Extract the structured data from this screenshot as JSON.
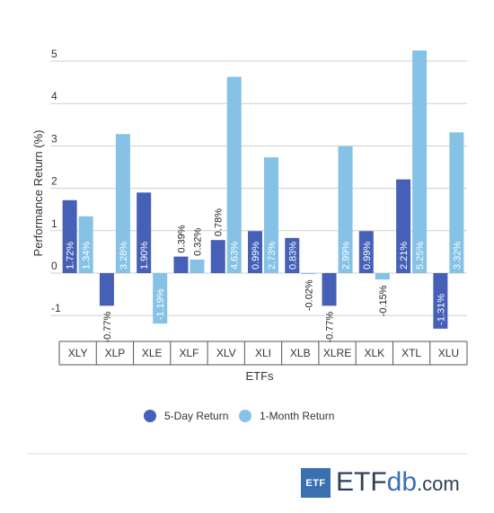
{
  "chart_data": {
    "type": "bar",
    "categories": [
      "XLY",
      "XLP",
      "XLE",
      "XLF",
      "XLV",
      "XLI",
      "XLB",
      "XLRE",
      "XLK",
      "XTL",
      "XLU"
    ],
    "series": [
      {
        "name": "5-Day Return",
        "color": "#4560b6",
        "values": [
          1.72,
          -0.77,
          1.9,
          0.39,
          0.78,
          0.99,
          0.83,
          -0.77,
          0.99,
          2.21,
          -1.31
        ],
        "labels": [
          "1.72%",
          "-0.77%",
          "1.90%",
          "0.39%",
          "0.78%",
          "0.99%",
          "0.83%",
          "-0.77%",
          "0.99%",
          "2.21%",
          "-1.31%"
        ]
      },
      {
        "name": "1-Month Return",
        "color": "#85c2e6",
        "values": [
          1.34,
          3.28,
          -1.19,
          0.32,
          4.63,
          2.73,
          -0.02,
          2.99,
          -0.15,
          5.25,
          3.32
        ],
        "labels": [
          "1.34%",
          "3.28%",
          "-1.19%",
          "0.32%",
          "4.63%",
          "2.73%",
          "-0.02%",
          "2.99%",
          "-0.15%",
          "5.25%",
          "3.32%"
        ]
      }
    ],
    "ylabel": "Performance Return (%)",
    "xlabel": "ETFs",
    "ylim": [
      -1.6,
      5.4
    ],
    "yticks": [
      "5",
      "4",
      "3",
      "2",
      "1",
      "0",
      "-1"
    ],
    "ytick_values": [
      5,
      4,
      3,
      2,
      1,
      0,
      -1
    ],
    "grid": true,
    "legend_position": "bottom"
  },
  "logo": {
    "box_text": "ETF",
    "word_main": "ETF",
    "word_db": "db",
    "word_com": ".com"
  }
}
